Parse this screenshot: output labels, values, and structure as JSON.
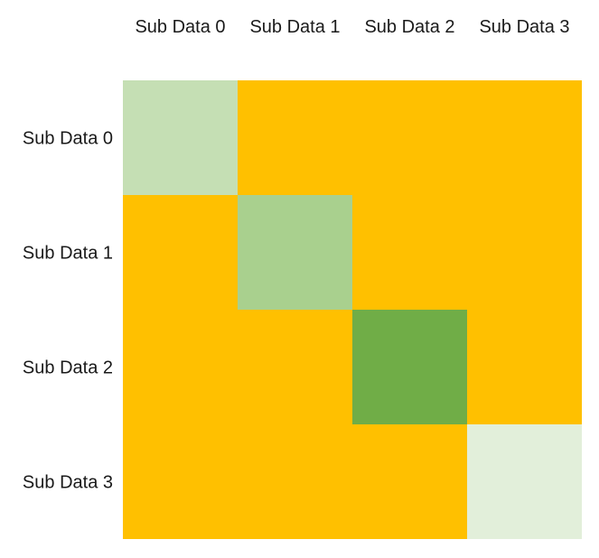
{
  "chart_data": {
    "type": "heatmap",
    "title": "",
    "xlabel": "",
    "ylabel": "",
    "columns": [
      "Sub Data 0",
      "Sub Data 1",
      "Sub Data 2",
      "Sub Data 3"
    ],
    "rows": [
      "Sub Data 0",
      "Sub Data 1",
      "Sub Data 2",
      "Sub Data 3"
    ],
    "column_label_position": "top",
    "row_label_position": "left",
    "colors": [
      [
        "#c5dfb4",
        "#ffc000",
        "#ffc000",
        "#ffc000"
      ],
      [
        "#ffc000",
        "#a9d08e",
        "#ffc000",
        "#ffc000"
      ],
      [
        "#ffc000",
        "#ffc000",
        "#70ad47",
        "#ffc000"
      ],
      [
        "#ffc000",
        "#ffc000",
        "#ffc000",
        "#e2efda"
      ]
    ],
    "grid": false,
    "legend": "none"
  }
}
